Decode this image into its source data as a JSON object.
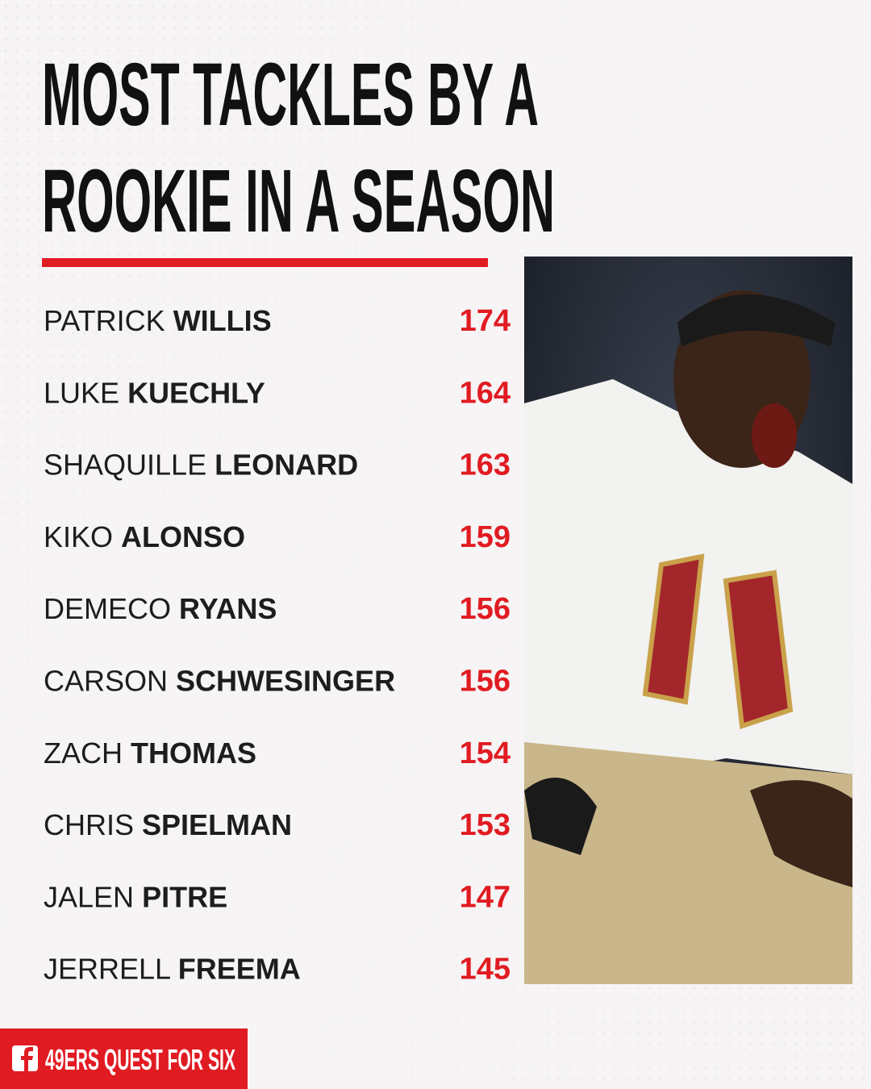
{
  "header": {
    "title_lines": [
      "MOST TACKLES BY A",
      "ROOKIE IN A SEASON"
    ]
  },
  "table": {
    "rows": [
      {
        "first": "PATRICK",
        "last": "WILLIS",
        "tackles": 174
      },
      {
        "first": "LUKE",
        "last": "KUECHLY",
        "tackles": 164
      },
      {
        "first": "SHAQUILLE",
        "last": "LEONARD",
        "tackles": 163
      },
      {
        "first": "KIKO",
        "last": "ALONSO",
        "tackles": 159
      },
      {
        "first": "DEMECO",
        "last": "RYANS",
        "tackles": 156
      },
      {
        "first": "CARSON",
        "last": "SCHWESINGER",
        "tackles": 156
      },
      {
        "first": "ZACH",
        "last": "THOMAS",
        "tackles": 154
      },
      {
        "first": "CHRIS",
        "last": "SPIELMAN",
        "tackles": 153
      },
      {
        "first": "JALEN",
        "last": "PITRE",
        "tackles": 147
      },
      {
        "first": "JERRELL",
        "last": "FREEMA",
        "tackles": 145
      }
    ]
  },
  "footer": {
    "brand": "49ERS QUEST FOR SIX"
  }
}
